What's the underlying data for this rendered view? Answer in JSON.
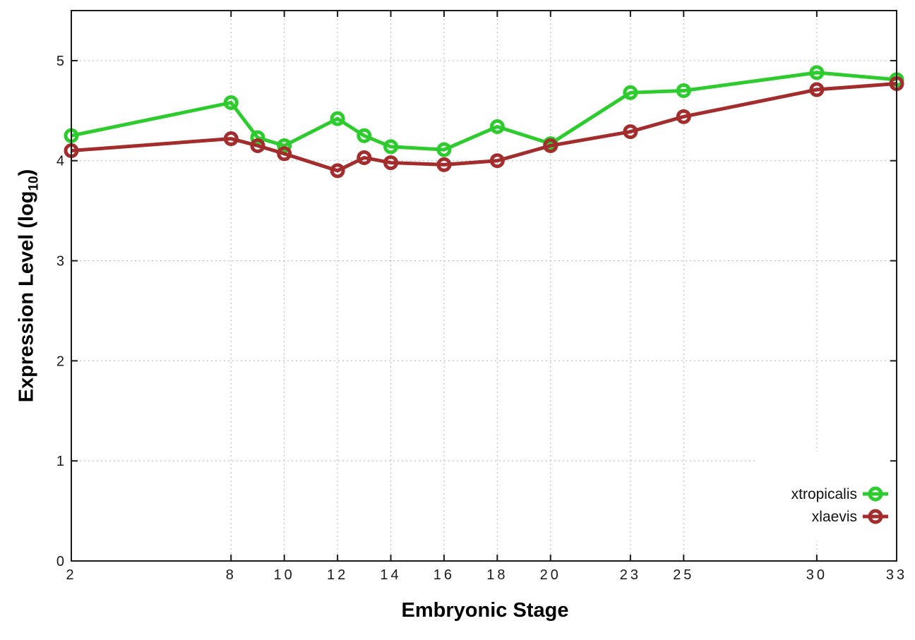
{
  "chart_data": {
    "type": "line",
    "title": "",
    "xlabel": "Embryonic Stage",
    "ylabel": "Expression Level (log10)",
    "ylabel_parts": {
      "main": "Expression Level (log",
      "sub": "10",
      "close": ")"
    },
    "x": [
      2,
      8,
      9,
      10,
      12,
      13,
      14,
      16,
      18,
      20,
      23,
      25,
      30,
      33
    ],
    "xticks": [
      "2",
      "8",
      "10",
      "12",
      "14",
      "16",
      "18",
      "20",
      "23",
      "25",
      "30",
      "33"
    ],
    "xtick_values": [
      2,
      8,
      10,
      12,
      14,
      16,
      18,
      20,
      23,
      25,
      30,
      33
    ],
    "yticks": [
      "0",
      "1",
      "2",
      "3",
      "4",
      "5"
    ],
    "ytick_values": [
      0,
      1,
      2,
      3,
      4,
      5
    ],
    "xlim": [
      2,
      33
    ],
    "ylim": [
      0,
      5.5
    ],
    "grid": true,
    "grid_style": "dotted",
    "legend": {
      "position": "inside-right",
      "entries": [
        "xtropicalis",
        "xlaevis"
      ]
    },
    "series": [
      {
        "name": "xtropicalis",
        "color": "#2DCB2D",
        "marker": "open-circle",
        "values": [
          4.25,
          4.58,
          4.23,
          4.15,
          4.42,
          4.25,
          4.14,
          4.11,
          4.34,
          4.17,
          4.68,
          4.7,
          4.88,
          4.81
        ]
      },
      {
        "name": "xlaevis",
        "color": "#A32C2C",
        "marker": "open-circle",
        "values": [
          4.1,
          4.22,
          4.15,
          4.07,
          3.9,
          4.03,
          3.98,
          3.96,
          4.0,
          4.15,
          4.29,
          4.44,
          4.71,
          4.77
        ]
      }
    ],
    "colors": {
      "background": "#ffffff",
      "frame": "#1a1a1a",
      "grid": "#b5b5b5",
      "tick_text": "#1a1a1a"
    }
  }
}
